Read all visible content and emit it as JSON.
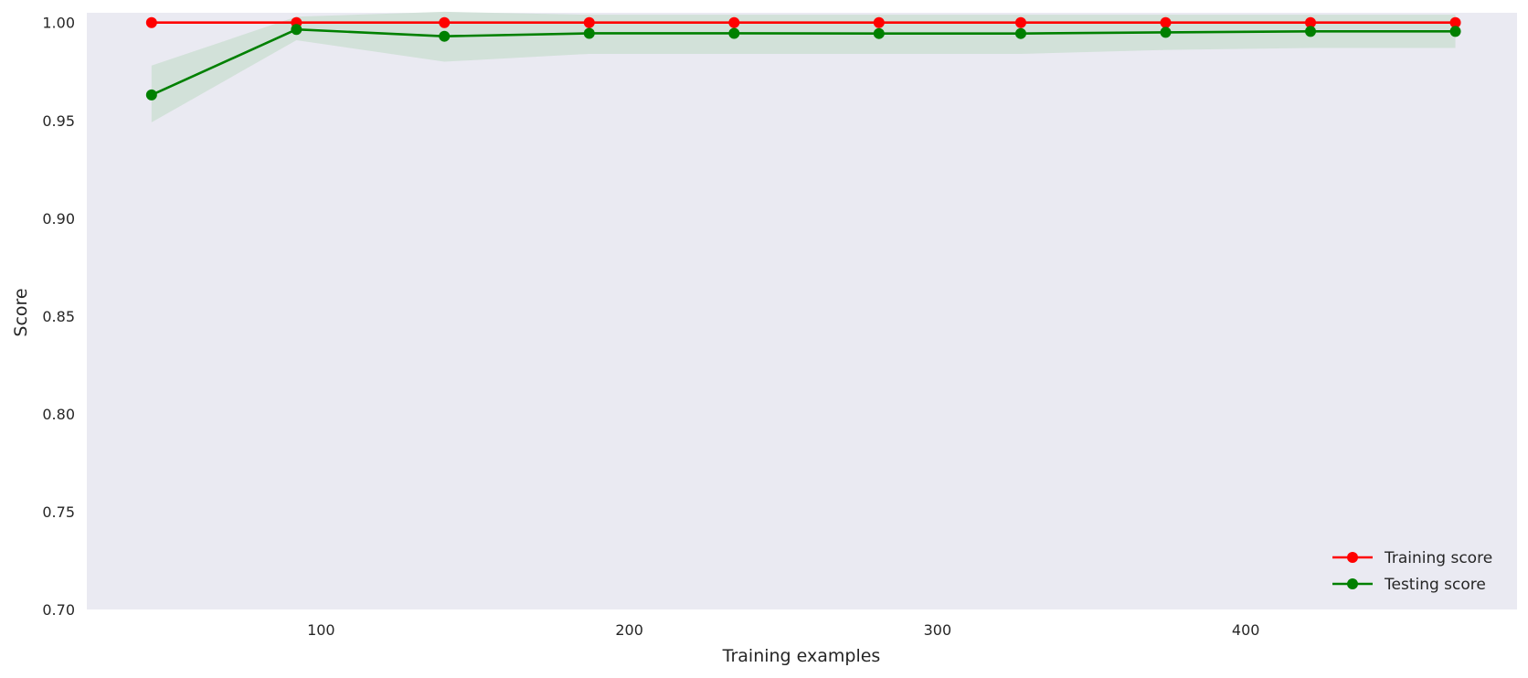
{
  "chart_data": {
    "type": "line",
    "title": "",
    "xlabel": "Training examples",
    "ylabel": "Score",
    "xlim": [
      24,
      488
    ],
    "ylim": [
      0.7,
      1.005
    ],
    "x_ticks": [
      100,
      200,
      300,
      400
    ],
    "y_ticks": [
      0.7,
      0.75,
      0.8,
      0.85,
      0.9,
      0.95,
      1.0
    ],
    "x_tick_labels": [
      "100",
      "200",
      "300",
      "400"
    ],
    "y_tick_labels": [
      "0.70",
      "0.75",
      "0.80",
      "0.85",
      "0.90",
      "0.95",
      "1.00"
    ],
    "grid": false,
    "background": "#eaeaf2",
    "legend_position": "lower-right",
    "x": [
      45,
      92,
      140,
      187,
      234,
      281,
      327,
      374,
      421,
      468
    ],
    "series": [
      {
        "name": "Training score",
        "color": "#ff0000",
        "marker": "circle",
        "values": [
          1.0,
          1.0,
          1.0,
          1.0,
          1.0,
          1.0,
          1.0,
          1.0,
          1.0,
          1.0
        ],
        "band_lower": [
          1.0,
          1.0,
          1.0,
          1.0,
          1.0,
          1.0,
          1.0,
          1.0,
          1.0,
          1.0
        ],
        "band_upper": [
          1.0,
          1.0,
          1.0,
          1.0,
          1.0,
          1.0,
          1.0,
          1.0,
          1.0,
          1.0
        ]
      },
      {
        "name": "Testing score",
        "color": "#008000",
        "band_color": "#cfe0d6",
        "marker": "circle",
        "values": [
          0.963,
          0.9965,
          0.993,
          0.9945,
          0.9945,
          0.9944,
          0.9944,
          0.995,
          0.9955,
          0.9955
        ],
        "band_lower": [
          0.949,
          0.991,
          0.98,
          0.984,
          0.984,
          0.984,
          0.984,
          0.986,
          0.987,
          0.987
        ],
        "band_upper": [
          0.978,
          1.003,
          1.0055,
          1.004,
          1.004,
          1.004,
          1.004,
          1.004,
          1.004,
          1.004
        ]
      }
    ]
  }
}
